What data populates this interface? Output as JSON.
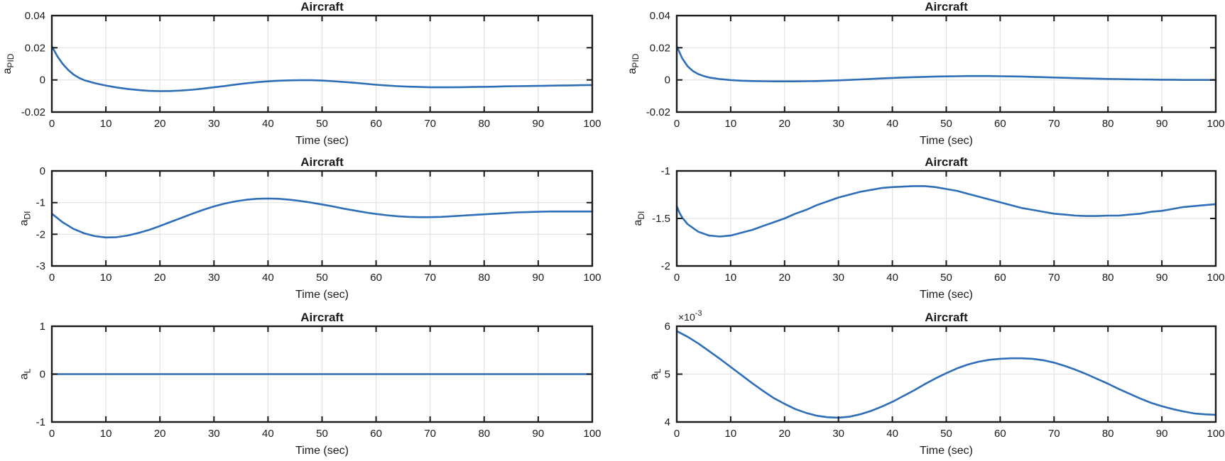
{
  "figure": {
    "background": "#ffffff",
    "line_color": "#2e6db8",
    "grid_color": "#e2e2e2",
    "axis_color": "#1a1a1a",
    "text_color": "#1a1a1a"
  },
  "chart_data": [
    {
      "id": "apid-left",
      "type": "line",
      "title": "Aircraft",
      "xlabel": "Time (sec)",
      "ylabel": {
        "base": "a",
        "sub": "PID"
      },
      "xlim": [
        0,
        100
      ],
      "ylim": [
        -0.02,
        0.04
      ],
      "xticks": [
        0,
        10,
        20,
        30,
        40,
        50,
        60,
        70,
        80,
        90,
        100
      ],
      "xtick_labels": [
        "0",
        "10",
        "20",
        "30",
        "40",
        "50",
        "60",
        "70",
        "80",
        "90",
        "100"
      ],
      "yticks": [
        -0.02,
        0,
        0.02,
        0.04
      ],
      "ytick_labels": [
        "-0.02",
        "0",
        "0.02",
        "0.04"
      ],
      "grid": true,
      "legend": "none",
      "series": [
        {
          "name": "aPID",
          "x": [
            0,
            1,
            2,
            3,
            4,
            5,
            6,
            8,
            10,
            12,
            14,
            16,
            18,
            20,
            22,
            24,
            26,
            28,
            30,
            32,
            34,
            36,
            38,
            40,
            42,
            44,
            46,
            48,
            50,
            52,
            54,
            56,
            58,
            60,
            62,
            64,
            66,
            68,
            70,
            72,
            74,
            76,
            78,
            80,
            82,
            84,
            86,
            88,
            90,
            92,
            94,
            96,
            98,
            100
          ],
          "y": [
            0.021,
            0.0148,
            0.01,
            0.0063,
            0.0034,
            0.0013,
            -0.0002,
            -0.0021,
            -0.0035,
            -0.0047,
            -0.0056,
            -0.0063,
            -0.0068,
            -0.007,
            -0.0069,
            -0.0066,
            -0.0061,
            -0.0054,
            -0.0046,
            -0.0038,
            -0.0029,
            -0.0021,
            -0.0014,
            -0.0009,
            -0.0005,
            -0.0003,
            -0.0002,
            -0.0002,
            -0.0004,
            -0.0008,
            -0.0013,
            -0.0018,
            -0.0024,
            -0.003,
            -0.0035,
            -0.0039,
            -0.0042,
            -0.0044,
            -0.0046,
            -0.0046,
            -0.0046,
            -0.0045,
            -0.0044,
            -0.0043,
            -0.0042,
            -0.004,
            -0.0039,
            -0.0038,
            -0.0037,
            -0.0036,
            -0.0035,
            -0.0034,
            -0.0033,
            -0.0032
          ]
        }
      ]
    },
    {
      "id": "apid-right",
      "type": "line",
      "title": "Aircraft",
      "xlabel": "Time (sec)",
      "ylabel": {
        "base": "a",
        "sub": "PID"
      },
      "xlim": [
        0,
        100
      ],
      "ylim": [
        -0.02,
        0.04
      ],
      "xticks": [
        0,
        10,
        20,
        30,
        40,
        50,
        60,
        70,
        80,
        90,
        100
      ],
      "xtick_labels": [
        "0",
        "10",
        "20",
        "30",
        "40",
        "50",
        "60",
        "70",
        "80",
        "90",
        "100"
      ],
      "yticks": [
        -0.02,
        0,
        0.02,
        0.04
      ],
      "ytick_labels": [
        "-0.02",
        "0",
        "0.02",
        "0.04"
      ],
      "grid": true,
      "legend": "none",
      "series": [
        {
          "name": "aPID",
          "x": [
            0,
            1,
            2,
            3,
            4,
            5,
            6,
            8,
            10,
            12,
            14,
            16,
            18,
            20,
            22,
            24,
            26,
            28,
            30,
            32,
            34,
            36,
            38,
            40,
            42,
            44,
            46,
            48,
            50,
            52,
            54,
            56,
            58,
            60,
            62,
            64,
            66,
            68,
            70,
            72,
            74,
            76,
            78,
            80,
            82,
            84,
            86,
            88,
            90,
            92,
            94,
            96,
            98,
            100
          ],
          "y": [
            0.021,
            0.0135,
            0.0085,
            0.0055,
            0.0036,
            0.0024,
            0.0015,
            0.0005,
            -0.0001,
            -0.0005,
            -0.0007,
            -0.0008,
            -0.0009,
            -0.0009,
            -0.0009,
            -0.0008,
            -0.0007,
            -0.0005,
            -0.0003,
            0.0,
            0.0003,
            0.0006,
            0.0009,
            0.0012,
            0.0015,
            0.0017,
            0.0019,
            0.0021,
            0.0022,
            0.0023,
            0.0024,
            0.0024,
            0.0024,
            0.0023,
            0.0022,
            0.0021,
            0.0019,
            0.0017,
            0.0015,
            0.0013,
            0.0011,
            0.0009,
            0.0008,
            0.0006,
            0.0005,
            0.0004,
            0.0003,
            0.0002,
            0.0001,
            0.0001,
            0.0,
            0.0,
            0.0,
            0.0
          ]
        }
      ]
    },
    {
      "id": "adi-left",
      "type": "line",
      "title": "Aircraft",
      "xlabel": "Time (sec)",
      "ylabel": {
        "base": "a",
        "sub": "DI"
      },
      "xlim": [
        0,
        100
      ],
      "ylim": [
        -3,
        0
      ],
      "xticks": [
        0,
        10,
        20,
        30,
        40,
        50,
        60,
        70,
        80,
        90,
        100
      ],
      "xtick_labels": [
        "0",
        "10",
        "20",
        "30",
        "40",
        "50",
        "60",
        "70",
        "80",
        "90",
        "100"
      ],
      "yticks": [
        -3,
        -2,
        -1,
        0
      ],
      "ytick_labels": [
        "-3",
        "-2",
        "-1",
        "0"
      ],
      "grid": true,
      "legend": "none",
      "series": [
        {
          "name": "aDI",
          "x": [
            0,
            2,
            4,
            6,
            8,
            10,
            12,
            14,
            16,
            18,
            20,
            22,
            24,
            26,
            28,
            30,
            32,
            34,
            36,
            38,
            40,
            42,
            44,
            46,
            48,
            50,
            52,
            54,
            56,
            58,
            60,
            62,
            64,
            66,
            68,
            70,
            72,
            74,
            76,
            78,
            80,
            82,
            84,
            86,
            88,
            90,
            92,
            94,
            96,
            98,
            100
          ],
          "y": [
            -1.35,
            -1.62,
            -1.83,
            -1.97,
            -2.06,
            -2.1,
            -2.09,
            -2.04,
            -1.96,
            -1.86,
            -1.74,
            -1.61,
            -1.48,
            -1.35,
            -1.23,
            -1.12,
            -1.03,
            -0.96,
            -0.91,
            -0.88,
            -0.87,
            -0.88,
            -0.91,
            -0.95,
            -1.0,
            -1.06,
            -1.12,
            -1.19,
            -1.25,
            -1.31,
            -1.36,
            -1.4,
            -1.43,
            -1.45,
            -1.46,
            -1.46,
            -1.45,
            -1.43,
            -1.41,
            -1.39,
            -1.37,
            -1.35,
            -1.33,
            -1.31,
            -1.3,
            -1.29,
            -1.28,
            -1.28,
            -1.28,
            -1.28,
            -1.28
          ]
        }
      ]
    },
    {
      "id": "adi-right",
      "type": "line",
      "title": "Aircraft",
      "xlabel": "Time (sec)",
      "ylabel": {
        "base": "a",
        "sub": "DI"
      },
      "xlim": [
        0,
        100
      ],
      "ylim": [
        -2,
        -1
      ],
      "xticks": [
        0,
        10,
        20,
        30,
        40,
        50,
        60,
        70,
        80,
        90,
        100
      ],
      "xtick_labels": [
        "0",
        "10",
        "20",
        "30",
        "40",
        "50",
        "60",
        "70",
        "80",
        "90",
        "100"
      ],
      "yticks": [
        -2,
        -1.5,
        -1
      ],
      "ytick_labels": [
        "-2",
        "-1.5",
        "-1"
      ],
      "grid": true,
      "legend": "none",
      "series": [
        {
          "name": "aDI",
          "x": [
            0,
            0.5,
            1,
            2,
            4,
            6,
            8,
            10,
            12,
            14,
            16,
            18,
            20,
            22,
            24,
            26,
            28,
            30,
            32,
            34,
            36,
            38,
            40,
            42,
            44,
            46,
            48,
            50,
            52,
            54,
            56,
            58,
            60,
            62,
            64,
            66,
            68,
            70,
            72,
            74,
            76,
            78,
            80,
            82,
            84,
            86,
            88,
            90,
            92,
            94,
            96,
            98,
            100
          ],
          "y": [
            -1.37,
            -1.44,
            -1.49,
            -1.56,
            -1.64,
            -1.68,
            -1.69,
            -1.68,
            -1.65,
            -1.62,
            -1.58,
            -1.54,
            -1.5,
            -1.45,
            -1.41,
            -1.36,
            -1.32,
            -1.28,
            -1.25,
            -1.22,
            -1.2,
            -1.18,
            -1.17,
            -1.165,
            -1.16,
            -1.16,
            -1.17,
            -1.19,
            -1.21,
            -1.24,
            -1.27,
            -1.3,
            -1.33,
            -1.36,
            -1.39,
            -1.41,
            -1.43,
            -1.45,
            -1.46,
            -1.47,
            -1.475,
            -1.475,
            -1.47,
            -1.47,
            -1.46,
            -1.45,
            -1.43,
            -1.42,
            -1.4,
            -1.38,
            -1.37,
            -1.36,
            -1.35
          ]
        }
      ]
    },
    {
      "id": "al-left",
      "type": "line",
      "title": "Aircraft",
      "xlabel": "Time (sec)",
      "ylabel": {
        "base": "a",
        "sub": "L"
      },
      "xlim": [
        0,
        100
      ],
      "ylim": [
        -1,
        1
      ],
      "xticks": [
        0,
        10,
        20,
        30,
        40,
        50,
        60,
        70,
        80,
        90,
        100
      ],
      "xtick_labels": [
        "0",
        "10",
        "20",
        "30",
        "40",
        "50",
        "60",
        "70",
        "80",
        "90",
        "100"
      ],
      "yticks": [
        -1,
        0,
        1
      ],
      "ytick_labels": [
        "-1",
        "0",
        "1"
      ],
      "grid": true,
      "legend": "none",
      "series": [
        {
          "name": "aL",
          "x": [
            0,
            100
          ],
          "y": [
            0,
            0
          ]
        }
      ]
    },
    {
      "id": "al-right",
      "type": "line",
      "title": "Aircraft",
      "xlabel": "Time (sec)",
      "ylabel": {
        "base": "a",
        "sub": "L"
      },
      "y_exponent_label": {
        "prefix": "×10",
        "power": "-3"
      },
      "y_unit_multiplier": "1e-3",
      "xlim": [
        0,
        100
      ],
      "ylim": [
        4,
        6
      ],
      "xticks": [
        0,
        10,
        20,
        30,
        40,
        50,
        60,
        70,
        80,
        90,
        100
      ],
      "xtick_labels": [
        "0",
        "10",
        "20",
        "30",
        "40",
        "50",
        "60",
        "70",
        "80",
        "90",
        "100"
      ],
      "yticks": [
        4,
        5,
        6
      ],
      "ytick_labels": [
        "4",
        "5",
        "6"
      ],
      "grid": true,
      "legend": "none",
      "series": [
        {
          "name": "aL",
          "x": [
            0,
            2,
            4,
            6,
            8,
            10,
            12,
            14,
            16,
            18,
            20,
            22,
            24,
            26,
            28,
            30,
            32,
            34,
            36,
            38,
            40,
            42,
            44,
            46,
            48,
            50,
            52,
            54,
            56,
            58,
            60,
            62,
            64,
            66,
            68,
            70,
            72,
            74,
            76,
            78,
            80,
            82,
            84,
            86,
            88,
            90,
            92,
            94,
            96,
            98,
            100
          ],
          "y": [
            5.9,
            5.78,
            5.64,
            5.48,
            5.32,
            5.15,
            4.98,
            4.81,
            4.65,
            4.5,
            4.38,
            4.27,
            4.19,
            4.13,
            4.1,
            4.09,
            4.11,
            4.16,
            4.23,
            4.32,
            4.42,
            4.54,
            4.66,
            4.79,
            4.91,
            5.02,
            5.12,
            5.2,
            5.26,
            5.3,
            5.32,
            5.33,
            5.33,
            5.32,
            5.29,
            5.24,
            5.17,
            5.09,
            5.0,
            4.9,
            4.8,
            4.69,
            4.59,
            4.49,
            4.4,
            4.33,
            4.27,
            4.22,
            4.18,
            4.16,
            4.15
          ]
        }
      ]
    }
  ]
}
